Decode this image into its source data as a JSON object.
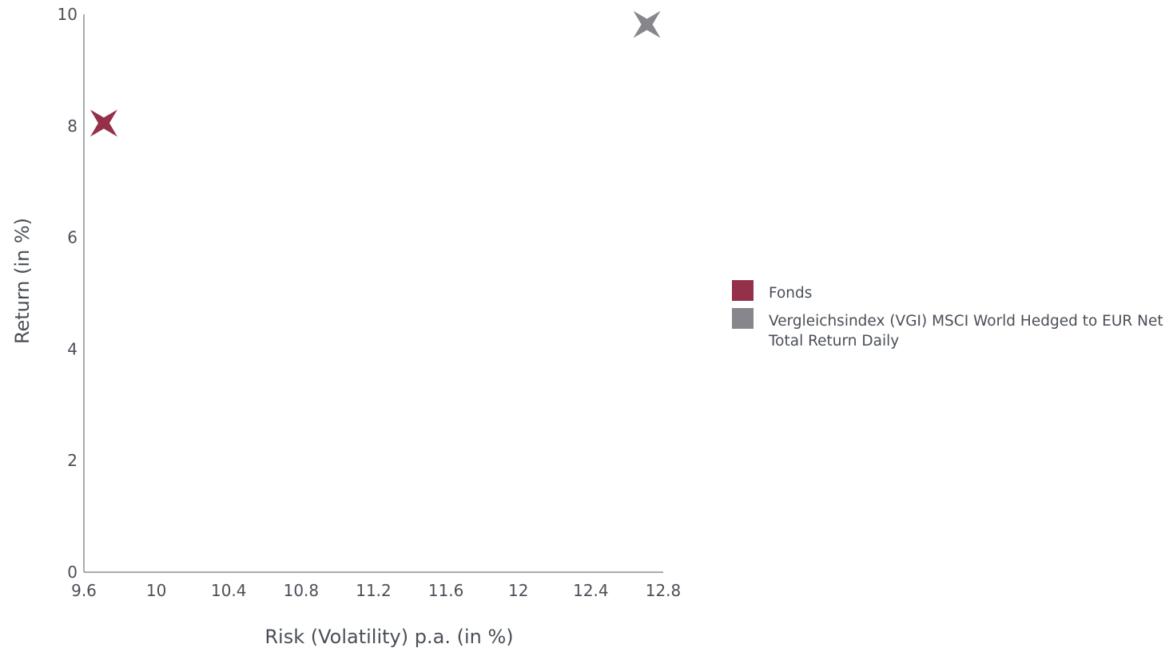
{
  "chart_data": {
    "type": "scatter",
    "xlabel": "Risk (Volatility) p.a. (in %)",
    "ylabel": "Return (in %)",
    "xlim": [
      9.6,
      12.8
    ],
    "ylim": [
      0,
      10
    ],
    "xticks": [
      "9.6",
      "10",
      "10.4",
      "10.8",
      "11.2",
      "11.6",
      "12",
      "12.4",
      "12.8"
    ],
    "yticks": [
      "0",
      "2",
      "4",
      "6",
      "8",
      "10"
    ],
    "grid": false,
    "legend_position": "right",
    "marker": "four-point-star",
    "series": [
      {
        "name": "Fonds",
        "color": "#94304a",
        "points": [
          {
            "x": 9.71,
            "y": 8.05
          }
        ]
      },
      {
        "name": "Vergleichsindex (VGI) MSCI World Hedged to EUR Net Total Return Daily",
        "color": "#86868c",
        "points": [
          {
            "x": 12.71,
            "y": 9.82
          }
        ]
      }
    ]
  }
}
